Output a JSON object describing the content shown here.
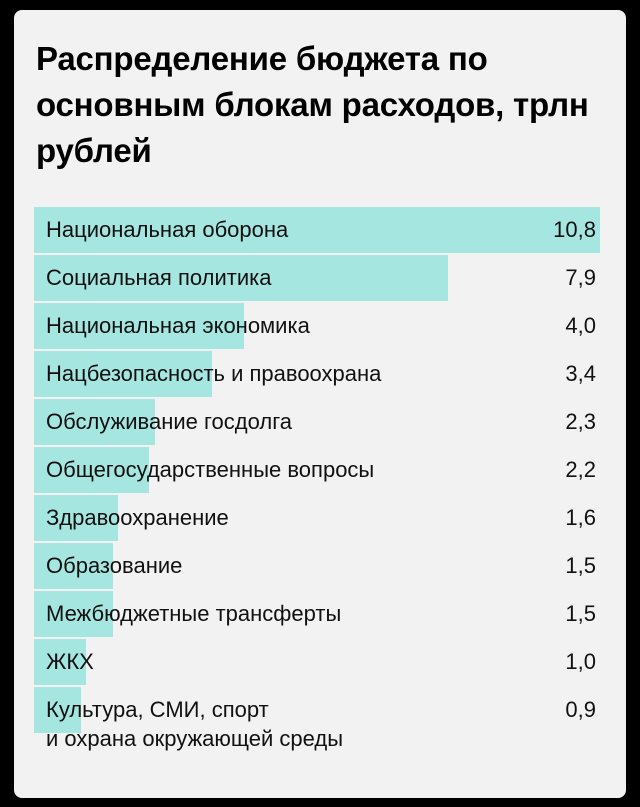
{
  "chart_data": {
    "type": "bar",
    "orientation": "horizontal",
    "title": "Распределение бюджета по основным блокам расходов, трлн рублей",
    "categories": [
      "Национальная оборона",
      "Социальная политика",
      "Национальная экономика",
      "Нацбезопасность и правоохрана",
      "Обслуживание госдолга",
      "Общегосударственные вопросы",
      "Здравоохранение",
      "Образование",
      "Межбюджетные трансферты",
      "ЖКХ",
      "Культура, СМИ, спорт\nи охрана окружающей среды"
    ],
    "values": [
      10.8,
      7.9,
      4.0,
      3.4,
      2.3,
      2.2,
      1.6,
      1.5,
      1.5,
      1.0,
      0.9
    ],
    "value_labels": [
      "10,8",
      "7,9",
      "4,0",
      "3,4",
      "2,3",
      "2,2",
      "1,6",
      "1,5",
      "1,5",
      "1,0",
      "0,9"
    ],
    "xlim": [
      0,
      10.8
    ],
    "grid": false,
    "bar_color": "#a6e6e0",
    "background_color": "#f2f2f2"
  }
}
